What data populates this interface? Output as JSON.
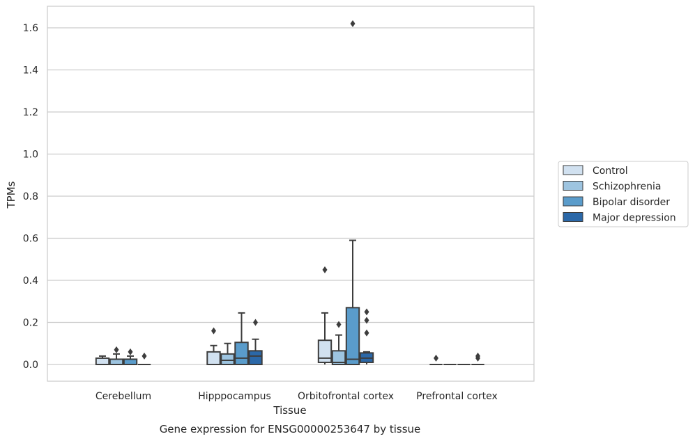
{
  "caption": "Gene expression for ENSG00000253647 by tissue",
  "chart_data": {
    "type": "box",
    "xlabel": "Tissue",
    "ylabel": "TPMs",
    "ylim": [
      -0.08,
      1.7
    ],
    "yticks": [
      "0.0",
      "0.2",
      "0.4",
      "0.6",
      "0.8",
      "1.0",
      "1.2",
      "1.4",
      "1.6"
    ],
    "grid": "horizontal",
    "legend_position": "right",
    "categories": [
      "Cerebellum",
      "Hipppocampus",
      "Orbitofrontal cortex",
      "Prefrontal cortex"
    ],
    "series": [
      {
        "name": "Control",
        "color": "#d1e1f0",
        "boxes": [
          {
            "whislo": 0.0,
            "q1": 0.0,
            "med": 0.0,
            "q3": 0.03,
            "whishi": 0.04,
            "fliers": []
          },
          {
            "whislo": 0.0,
            "q1": 0.0,
            "med": 0.0,
            "q3": 0.06,
            "whishi": 0.09,
            "fliers": [
              0.16
            ]
          },
          {
            "whislo": 0.0,
            "q1": 0.01,
            "med": 0.03,
            "q3": 0.115,
            "whishi": 0.245,
            "fliers": [
              0.45
            ]
          },
          {
            "whislo": 0.0,
            "q1": 0.0,
            "med": 0.0,
            "q3": 0.0,
            "whishi": 0.0,
            "fliers": [
              0.03
            ]
          }
        ]
      },
      {
        "name": "Schizophrenia",
        "color": "#9dc4e0",
        "boxes": [
          {
            "whislo": 0.0,
            "q1": 0.0,
            "med": 0.0,
            "q3": 0.025,
            "whishi": 0.05,
            "fliers": [
              0.07
            ]
          },
          {
            "whislo": 0.0,
            "q1": 0.0,
            "med": 0.02,
            "q3": 0.05,
            "whishi": 0.1,
            "fliers": []
          },
          {
            "whislo": 0.0,
            "q1": 0.0,
            "med": 0.01,
            "q3": 0.065,
            "whishi": 0.14,
            "fliers": [
              0.19
            ]
          },
          {
            "whislo": 0.0,
            "q1": 0.0,
            "med": 0.0,
            "q3": 0.0,
            "whishi": 0.0,
            "fliers": []
          }
        ]
      },
      {
        "name": "Bipolar disorder",
        "color": "#5a9ccb",
        "boxes": [
          {
            "whislo": 0.0,
            "q1": 0.0,
            "med": 0.0,
            "q3": 0.025,
            "whishi": 0.04,
            "fliers": [
              0.06
            ]
          },
          {
            "whislo": 0.0,
            "q1": 0.0,
            "med": 0.03,
            "q3": 0.105,
            "whishi": 0.245,
            "fliers": []
          },
          {
            "whislo": 0.0,
            "q1": 0.0,
            "med": 0.025,
            "q3": 0.27,
            "whishi": 0.59,
            "fliers": [
              1.62
            ]
          },
          {
            "whislo": 0.0,
            "q1": 0.0,
            "med": 0.0,
            "q3": 0.0,
            "whishi": 0.0,
            "fliers": []
          }
        ]
      },
      {
        "name": "Major depression",
        "color": "#2b68a8",
        "boxes": [
          {
            "whislo": 0.0,
            "q1": 0.0,
            "med": 0.0,
            "q3": 0.0,
            "whishi": 0.0,
            "fliers": [
              0.04
            ]
          },
          {
            "whislo": 0.0,
            "q1": 0.0,
            "med": 0.04,
            "q3": 0.065,
            "whishi": 0.12,
            "fliers": [
              0.2
            ]
          },
          {
            "whislo": 0.0,
            "q1": 0.01,
            "med": 0.03,
            "q3": 0.055,
            "whishi": 0.06,
            "fliers": [
              0.15,
              0.21,
              0.25
            ]
          },
          {
            "whislo": 0.0,
            "q1": 0.0,
            "med": 0.0,
            "q3": 0.0,
            "whishi": 0.0,
            "fliers": [
              0.03,
              0.04
            ]
          }
        ]
      }
    ]
  }
}
